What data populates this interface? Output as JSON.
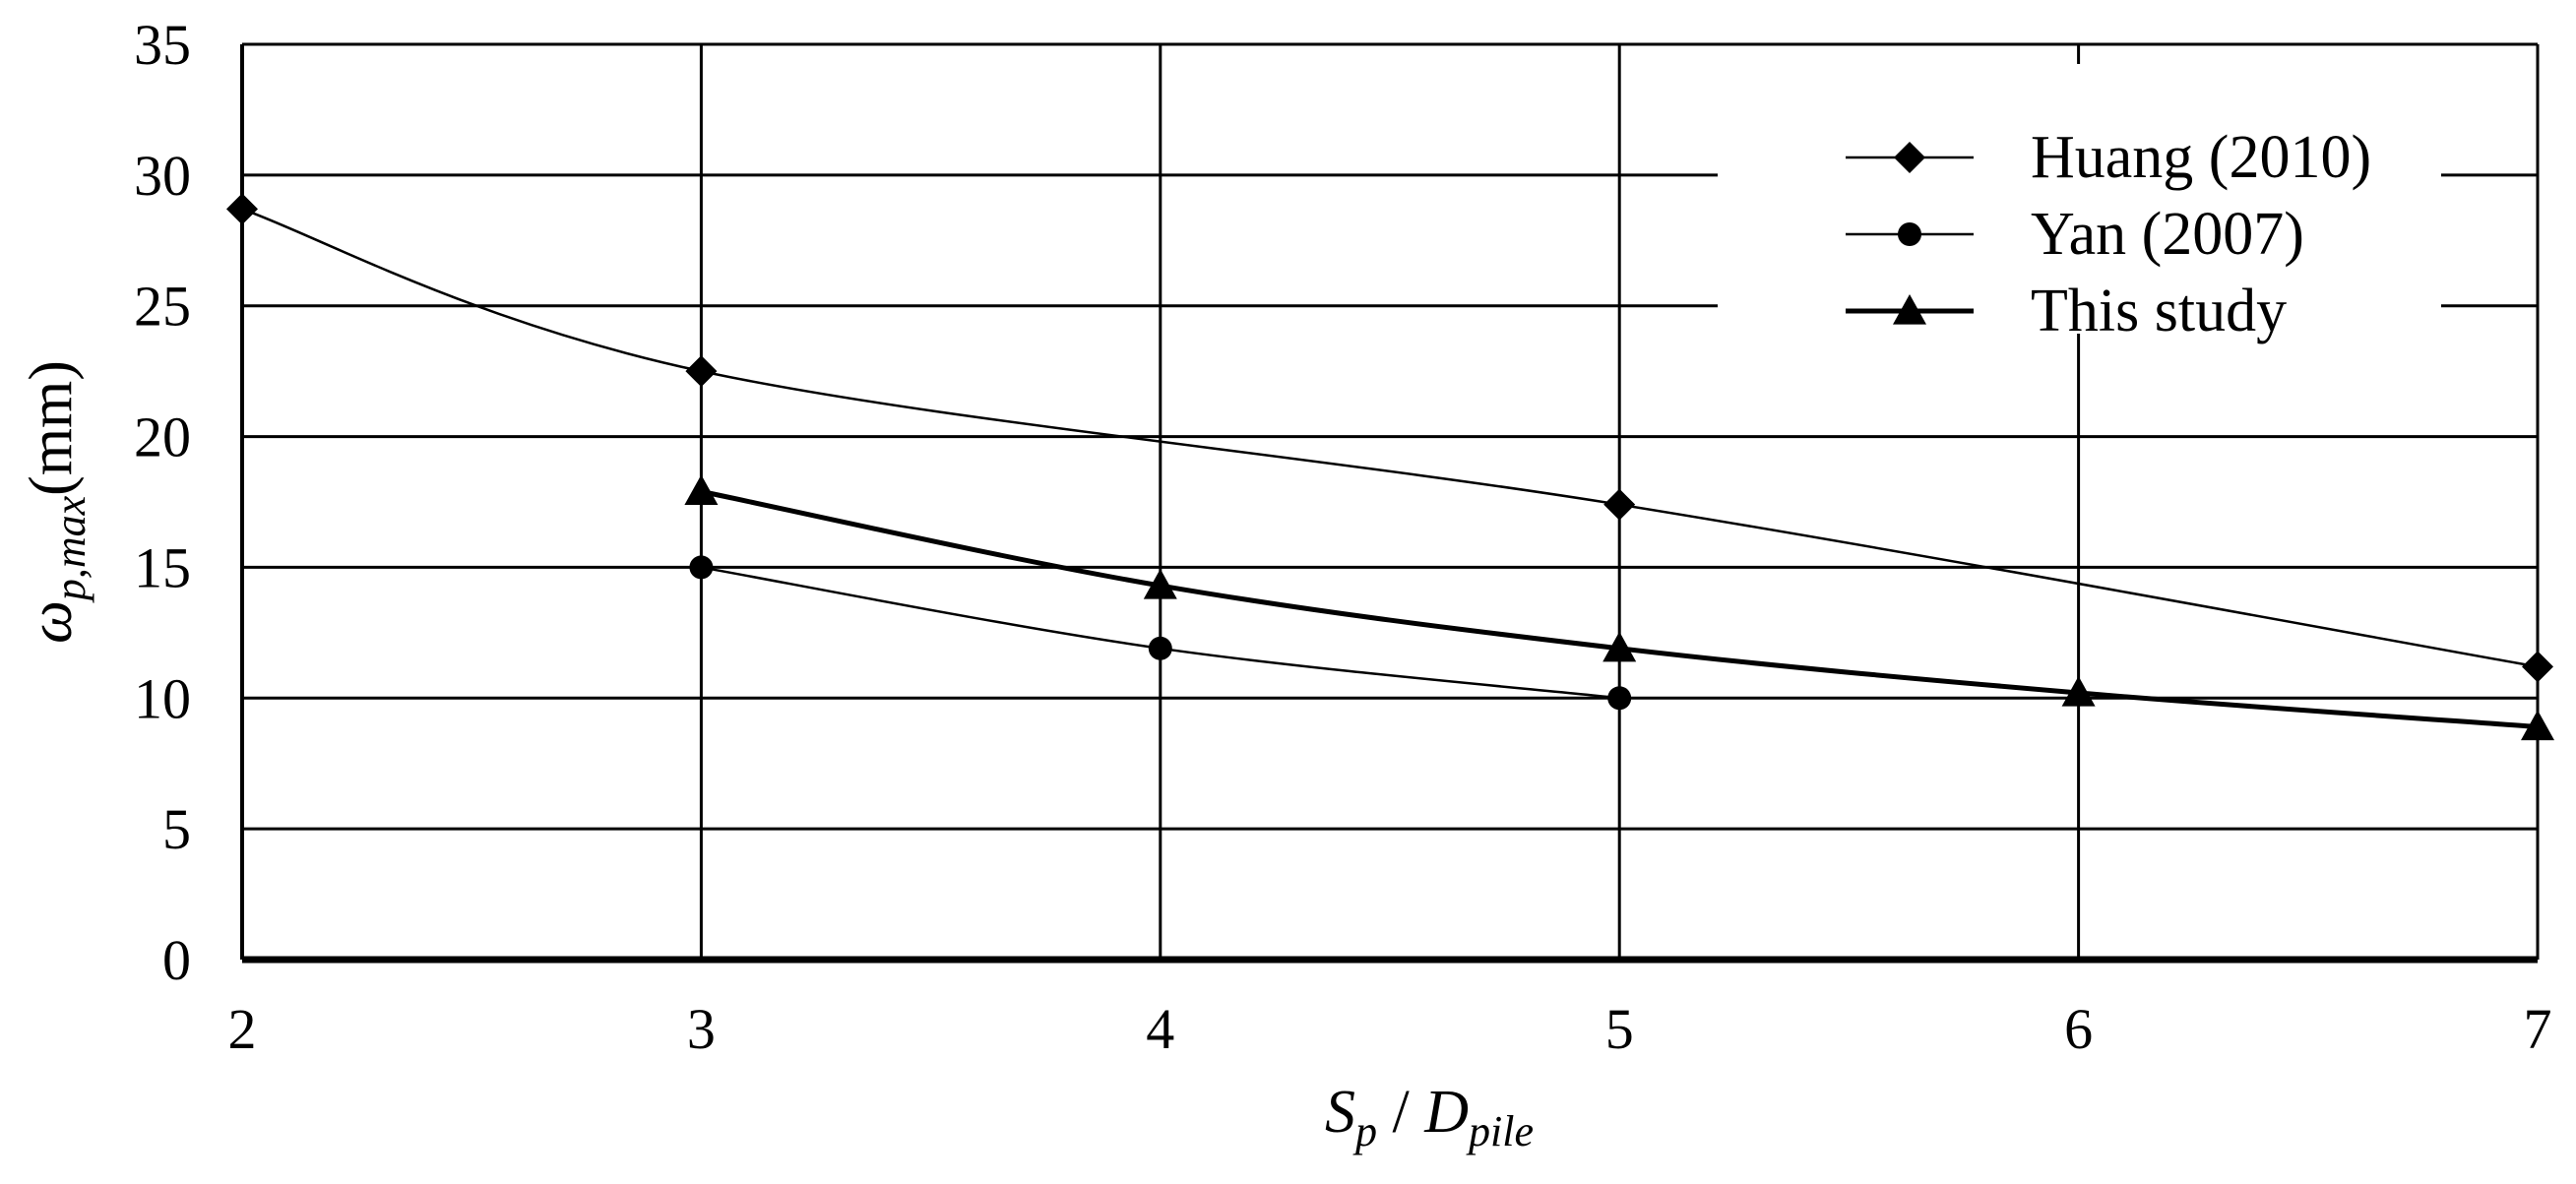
{
  "chart_data": {
    "type": "line",
    "title": "",
    "xlabel": {
      "main": "S",
      "main_sub": "p",
      "sep": " / ",
      "main2": "D",
      "main2_sub": "pile"
    },
    "ylabel": {
      "main": "ω",
      "sub": "p,max",
      "unit": "(mm)"
    },
    "xlim": [
      2,
      7
    ],
    "ylim": [
      0,
      35
    ],
    "xticks": [
      "2",
      "3",
      "4",
      "5",
      "6",
      "7"
    ],
    "yticks": [
      "0",
      "5",
      "10",
      "15",
      "20",
      "25",
      "30",
      "35"
    ],
    "grid": true,
    "legend_position": "top-right",
    "series": [
      {
        "name": "Huang (2010)",
        "marker": "diamond",
        "color": "#000000",
        "x": [
          2,
          3,
          5,
          7
        ],
        "y": [
          28.7,
          22.5,
          17.4,
          11.2
        ]
      },
      {
        "name": "Yan (2007)",
        "marker": "circle",
        "color": "#000000",
        "x": [
          3,
          4,
          5
        ],
        "y": [
          15.0,
          11.9,
          10.0
        ]
      },
      {
        "name": "This study",
        "marker": "triangle",
        "color": "#000000",
        "x": [
          3,
          4,
          5,
          6,
          7
        ],
        "y": [
          17.9,
          14.3,
          11.9,
          10.2,
          8.9
        ]
      }
    ]
  }
}
